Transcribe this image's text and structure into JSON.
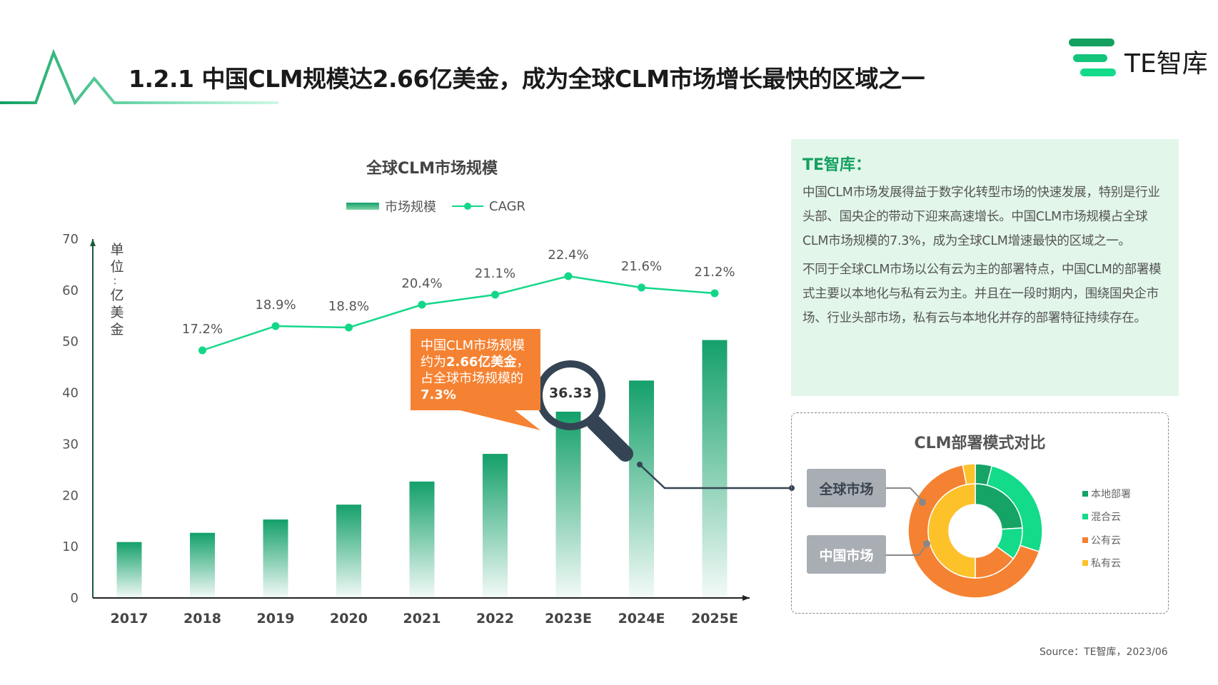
{
  "header": {
    "title": "1.2.1 中国CLM规模达2.66亿美金，成为全球CLM市场增长最快的区域之一",
    "logo_text": "TE智库"
  },
  "chart_data": [
    {
      "type": "bar+line",
      "title": "全球CLM市场规模",
      "ylabel": "单位：亿美金",
      "ylim": [
        0,
        70
      ],
      "yticks": [
        0,
        10,
        20,
        30,
        40,
        50,
        60,
        70
      ],
      "categories": [
        "2017",
        "2018",
        "2019",
        "2020",
        "2021",
        "2022",
        "2023E",
        "2024E",
        "2025E"
      ],
      "series": [
        {
          "name": "市场规模",
          "type": "bar",
          "values": [
            10.9,
            12.7,
            15.3,
            18.2,
            22.7,
            28.1,
            36.33,
            42.4,
            50.3
          ],
          "color": "#14a06a"
        },
        {
          "name": "CAGR",
          "type": "line",
          "values": [
            null,
            17.2,
            18.9,
            18.8,
            20.4,
            21.1,
            22.4,
            21.6,
            21.2
          ],
          "labels": [
            "",
            "17.2%",
            "18.9%",
            "18.8%",
            "20.4%",
            "21.1%",
            "22.4%",
            "21.6%",
            "21.2%"
          ],
          "color": "#13d788"
        }
      ],
      "highlight_label": "36.33",
      "legend": "top"
    },
    {
      "type": "pie",
      "title": "CLM部署模式对比",
      "categories": [
        "本地部署",
        "混合云",
        "公有云",
        "私有云"
      ],
      "colors": [
        "#15a366",
        "#13db89",
        "#f58232",
        "#fdc12a"
      ],
      "series": [
        {
          "name": "全球市场",
          "ring": "outer",
          "values": [
            4,
            26,
            67,
            3
          ]
        },
        {
          "name": "中国市场",
          "ring": "inner",
          "values": [
            24,
            11,
            15,
            50
          ]
        }
      ],
      "legend": "right"
    }
  ],
  "ylabel_chars": [
    "单",
    "位",
    "：",
    "亿",
    "美",
    "金"
  ],
  "callout": {
    "line1": "中国CLM市场规模约为",
    "bold1": "2.66亿美金",
    "line2": "，占全球市场规模的",
    "bold2": "7.3%"
  },
  "info": {
    "heading": "TE智库：",
    "p1": "中国CLM市场发展得益于数字化转型市场的快速发展，特别是行业头部、国央企的带动下迎来高速增长。中国CLM市场规模占全球CLM市场规模的7.3%，成为全球CLM增速最快的区域之一。",
    "p2": "不同于全球CLM市场以公有云为主的部署特点，中国CLM的部署模式主要以本地化与私有云为主。并且在一段时期内，围绕国央企市场、行业头部市场，私有云与本地化并存的部署特征持续存在。"
  },
  "source": "Source：TE智库，2023/06"
}
